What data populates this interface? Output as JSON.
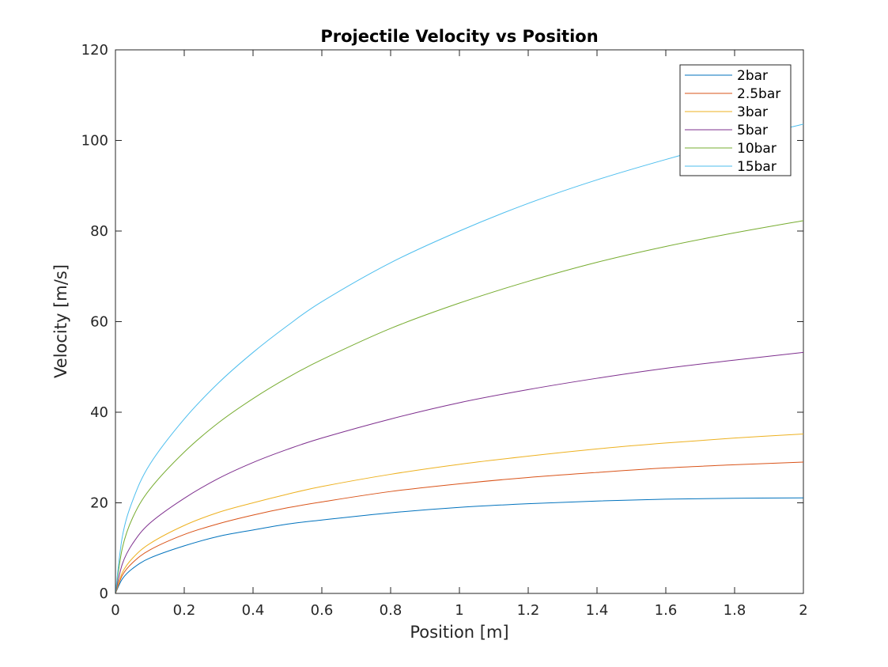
{
  "chart_data": {
    "type": "line",
    "title": "Projectile Velocity vs Position",
    "xlabel": "Position [m]",
    "ylabel": "Velocity [m/s]",
    "xlim": [
      0,
      2
    ],
    "ylim": [
      0,
      120
    ],
    "xticks": [
      0,
      0.2,
      0.4,
      0.6,
      0.8,
      1,
      1.2,
      1.4,
      1.6,
      1.8,
      2
    ],
    "xtick_labels": [
      "0",
      "0.2",
      "0.4",
      "0.6",
      "0.8",
      "1",
      "1.2",
      "1.4",
      "1.6",
      "1.8",
      "2"
    ],
    "yticks": [
      0,
      20,
      40,
      60,
      80,
      100,
      120
    ],
    "ytick_labels": [
      "0",
      "20",
      "40",
      "60",
      "80",
      "100",
      "120"
    ],
    "grid": false,
    "legend_position": "top-right",
    "x": [
      0,
      0.02,
      0.05,
      0.1,
      0.2,
      0.3,
      0.4,
      0.5,
      0.6,
      0.8,
      1.0,
      1.2,
      1.4,
      1.6,
      1.8,
      2.0
    ],
    "series": [
      {
        "name": "2bar",
        "color": "#0072BD",
        "values": [
          0,
          3.2,
          5.5,
          7.8,
          10.5,
          12.6,
          14.0,
          15.3,
          16.2,
          17.8,
          19.0,
          19.8,
          20.4,
          20.8,
          21.0,
          21.1
        ]
      },
      {
        "name": "2.5bar",
        "color": "#D95319",
        "values": [
          0,
          4.0,
          6.8,
          9.6,
          13.0,
          15.4,
          17.3,
          18.9,
          20.2,
          22.5,
          24.2,
          25.6,
          26.7,
          27.7,
          28.4,
          29.0
        ]
      },
      {
        "name": "3bar",
        "color": "#EDB120",
        "values": [
          0,
          4.6,
          7.8,
          11.0,
          15.0,
          17.9,
          20.0,
          21.9,
          23.6,
          26.3,
          28.5,
          30.3,
          31.9,
          33.2,
          34.3,
          35.2
        ]
      },
      {
        "name": "5bar",
        "color": "#7E2F8E",
        "values": [
          0,
          6.5,
          11.0,
          15.5,
          21.0,
          25.4,
          28.9,
          31.8,
          34.3,
          38.5,
          42.1,
          45.0,
          47.5,
          49.7,
          51.5,
          53.2
        ]
      },
      {
        "name": "10bar",
        "color": "#77AC30",
        "values": [
          0,
          10.0,
          16.7,
          23.0,
          31.2,
          37.7,
          43.0,
          47.6,
          51.6,
          58.5,
          64.1,
          68.9,
          73.1,
          76.6,
          79.6,
          82.3
        ]
      },
      {
        "name": "15bar",
        "color": "#4DBEEE",
        "values": [
          0,
          12.5,
          20.5,
          28.5,
          38.5,
          46.5,
          53.2,
          59.1,
          64.4,
          73.0,
          80.0,
          86.1,
          91.3,
          95.8,
          99.9,
          103.6
        ]
      }
    ]
  }
}
